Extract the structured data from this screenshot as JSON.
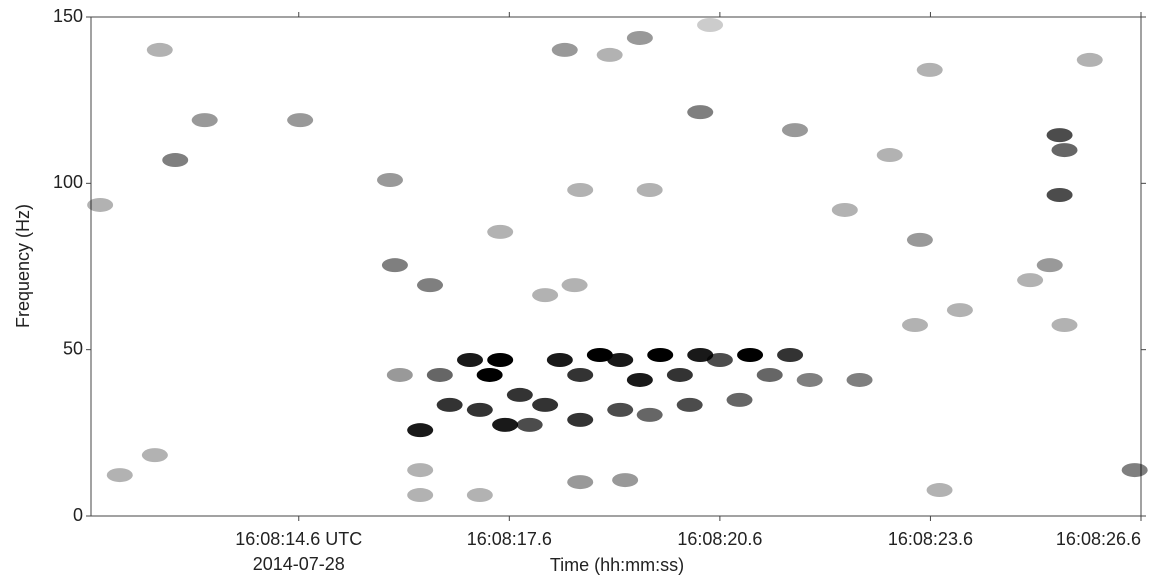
{
  "chart_data": {
    "type": "spectrogram",
    "x_label": "Time (hh:mm:ss)",
    "y_label": "Frequency (Hz)",
    "date_label": "2014-07-28",
    "xlim": [
      11.64,
      26.6
    ],
    "ylim": [
      0,
      150
    ],
    "xticks": [
      {
        "value": 14.6,
        "label": "16:08:14.6 UTC"
      },
      {
        "value": 17.6,
        "label": "16:08:17.6"
      },
      {
        "value": 20.6,
        "label": "16:08:20.6"
      },
      {
        "value": 23.6,
        "label": "16:08:23.6"
      },
      {
        "value": 26.6,
        "label": "16:08:26.6"
      }
    ],
    "yticks": [
      0,
      50,
      100,
      150
    ],
    "color": "#000000",
    "x": [
      16.33,
      16.61,
      17.04,
      17.32,
      17.47,
      17.54,
      17.75,
      18.11,
      18.32,
      18.61,
      18.89,
      19.18,
      19.46,
      19.75,
      20.03,
      20.32,
      20.6,
      21.03,
      21.6,
      21.31,
      16.75,
      17.18,
      17.89,
      18.61,
      19.18,
      19.6,
      20.17,
      20.88,
      21.88,
      22.59,
      16.33,
      17.18,
      16.33,
      18.61,
      19.25,
      16.04,
      12.84,
      13.26,
      14.62,
      12.62,
      15.9,
      15.97,
      16.47,
      18.39,
      19.03,
      19.46,
      20.32,
      21.67,
      25.44,
      25.51,
      25.44,
      25.3,
      25.02,
      26.51,
      23.73,
      12.05,
      12.55,
      18.61,
      19.6,
      23.02,
      23.45,
      24.02,
      20.46,
      23.59,
      25.87,
      11.77,
      22.38,
      17.47,
      18.53,
      18.11,
      23.38,
      25.51
    ],
    "y": [
      25.8,
      42.4,
      46.9,
      42.4,
      46.9,
      27.4,
      36.4,
      33.4,
      46.9,
      42.4,
      48.4,
      46.9,
      40.9,
      48.4,
      42.4,
      48.4,
      46.9,
      48.4,
      48.4,
      42.4,
      33.4,
      31.9,
      27.4,
      28.9,
      31.9,
      30.4,
      33.4,
      34.9,
      40.9,
      40.9,
      13.8,
      6.3,
      6.3,
      10.2,
      10.8,
      42.4,
      107.0,
      119.0,
      119.0,
      140.1,
      101.0,
      75.4,
      69.4,
      140.1,
      138.6,
      143.7,
      121.4,
      116.0,
      114.5,
      110.0,
      96.5,
      75.4,
      70.9,
      13.8,
      7.8,
      12.3,
      18.3,
      98.0,
      98.0,
      108.5,
      83.0,
      61.9,
      147.6,
      134.1,
      137.1,
      93.5,
      92.0,
      85.4,
      69.4,
      66.4,
      57.4,
      57.4
    ],
    "values": [
      0.9,
      0.6,
      0.9,
      1,
      1,
      0.9,
      0.8,
      0.8,
      0.9,
      0.8,
      1,
      0.9,
      0.9,
      1,
      0.8,
      0.9,
      0.7,
      1,
      0.8,
      0.6,
      0.8,
      0.8,
      0.7,
      0.8,
      0.7,
      0.6,
      0.7,
      0.6,
      0.5,
      0.5,
      0.3,
      0.3,
      0.3,
      0.4,
      0.4,
      0.4,
      0.5,
      0.4,
      0.4,
      0.3,
      0.4,
      0.5,
      0.5,
      0.4,
      0.3,
      0.4,
      0.5,
      0.4,
      0.7,
      0.6,
      0.7,
      0.4,
      0.3,
      0.5,
      0.3,
      0.3,
      0.3,
      0.3,
      0.3,
      0.3,
      0.4,
      0.3,
      0.2,
      0.3,
      0.3,
      0.3,
      0.3,
      0.3,
      0.3,
      0.3,
      0.3,
      0.3
    ]
  }
}
